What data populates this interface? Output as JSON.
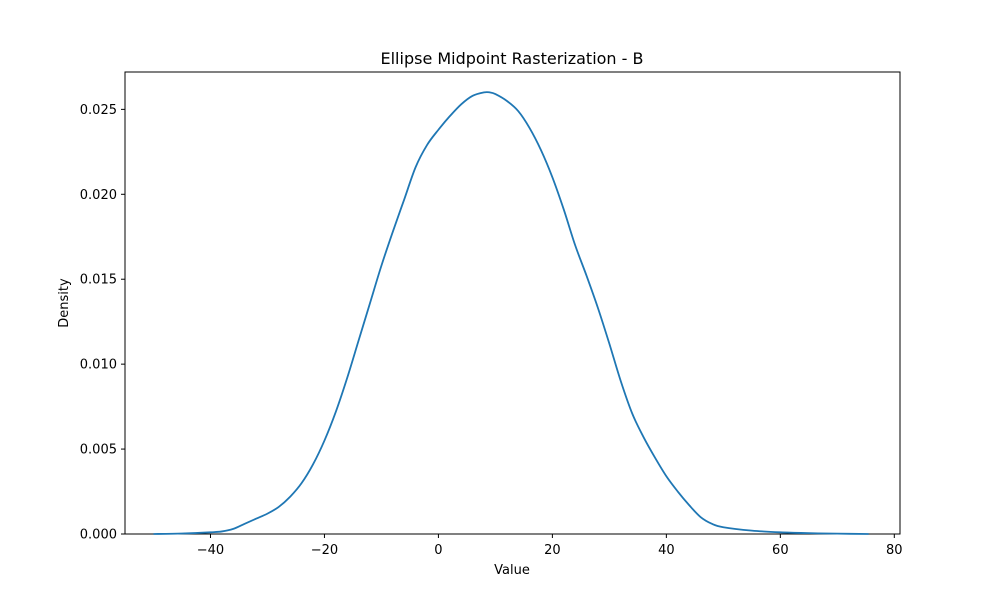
{
  "chart_data": {
    "type": "line",
    "title": "Ellipse Midpoint Rasterization - B",
    "xlabel": "Value",
    "ylabel": "Density",
    "xlim": [
      -55,
      81
    ],
    "ylim": [
      0,
      0.0272
    ],
    "x_ticks": [
      -40,
      -20,
      0,
      20,
      40,
      60,
      80
    ],
    "x_tick_labels": [
      "−40",
      "−20",
      "0",
      "20",
      "40",
      "60",
      "80"
    ],
    "y_ticks": [
      0,
      0.005,
      0.01,
      0.015,
      0.02,
      0.025
    ],
    "y_tick_labels": [
      "0.000",
      "0.005",
      "0.010",
      "0.015",
      "0.020",
      "0.025"
    ],
    "grid": false,
    "line_color": "#1f77b4",
    "series": [
      {
        "x": [
          -50,
          -45,
          -40,
          -38,
          -36,
          -34,
          -32,
          -30,
          -28,
          -26,
          -24,
          -22,
          -20,
          -18,
          -16,
          -14,
          -12,
          -10,
          -8,
          -6,
          -4,
          -2,
          0,
          2,
          4,
          6,
          8,
          9,
          10,
          12,
          14,
          16,
          18,
          20,
          22,
          24,
          26,
          28,
          30,
          32,
          34,
          36,
          38,
          40,
          42,
          44,
          46,
          48,
          50,
          55,
          60,
          65,
          70,
          75.5
        ],
        "y": [
          0.0,
          3e-05,
          0.0001,
          0.00015,
          0.0003,
          0.0006,
          0.0009,
          0.0012,
          0.0016,
          0.0022,
          0.003,
          0.0041,
          0.0055,
          0.0072,
          0.0092,
          0.0114,
          0.0136,
          0.0158,
          0.0178,
          0.0197,
          0.0216,
          0.0229,
          0.0238,
          0.0246,
          0.0253,
          0.0258,
          0.026,
          0.026,
          0.0259,
          0.0255,
          0.0249,
          0.0239,
          0.0226,
          0.021,
          0.0191,
          0.017,
          0.0152,
          0.0133,
          0.0112,
          0.009,
          0.0071,
          0.0057,
          0.0045,
          0.0034,
          0.0025,
          0.0017,
          0.001,
          0.0006,
          0.0004,
          0.0002,
          0.0001,
          5e-05,
          2e-05,
          0.0
        ]
      }
    ]
  }
}
